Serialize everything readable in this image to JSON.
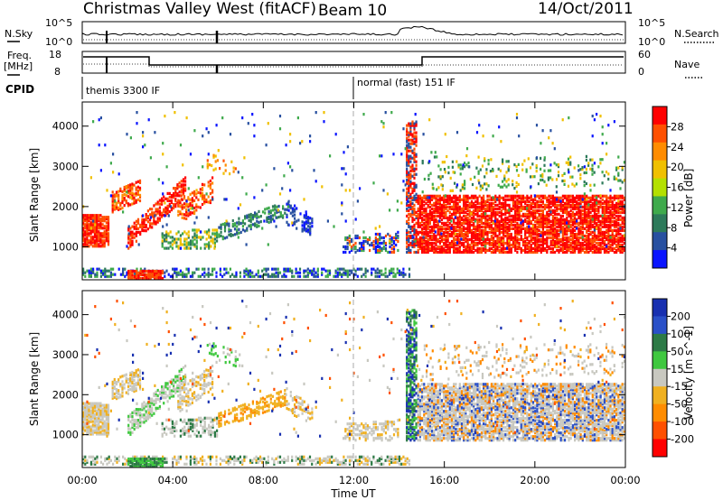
{
  "header": {
    "title": "Christmas Valley West (fitACF)",
    "beam": "Beam 10",
    "date": "14/Oct/2011"
  },
  "top_panels": {
    "nsky_label": "N.Sky",
    "nsky_ticks": [
      "10^5",
      "10^0"
    ],
    "nsearch_label": "N.Search",
    "nsearch_ticks": [
      "10^5",
      "10^0"
    ],
    "freq_label_1": "Freq.",
    "freq_label_2": "[MHz]",
    "freq_ticks": [
      "18",
      "8"
    ],
    "nave_label": "Nave",
    "nave_ticks": [
      "60",
      "0"
    ],
    "cpid_label": "CPID",
    "cpid_1": "themis 3300 IF",
    "cpid_2": "normal (fast) 151 IF"
  },
  "chart_data": [
    {
      "type": "heatmap",
      "title": "Power",
      "xlabel": "Time UT",
      "ylabel": "Slant Range [km]",
      "xlim": [
        0,
        24
      ],
      "ylim": [
        180,
        4600
      ],
      "x_ticks": [
        "00:00",
        "04:00",
        "08:00",
        "12:00",
        "16:00",
        "20:00",
        "00:00"
      ],
      "y_ticks": [
        "1000",
        "2000",
        "3000",
        "4000"
      ],
      "y_tick_values": [
        1000,
        2000,
        3000,
        4000
      ],
      "colorbar_label": "Power [dB]",
      "colorbar_ticks": [
        "28",
        "24",
        "20",
        "16",
        "12",
        "8",
        "4"
      ],
      "colorbar_colors": [
        "#ff0000",
        "#ff5000",
        "#ff8c00",
        "#f0c000",
        "#b4e000",
        "#3faa4c",
        "#2d7a5a",
        "#2850a0",
        "#0a14ff"
      ]
    },
    {
      "type": "heatmap",
      "title": "Velocity",
      "xlabel": "Time UT",
      "ylabel": "Slant Range [km]",
      "xlim": [
        0,
        24
      ],
      "ylim": [
        180,
        4600
      ],
      "x_ticks": [
        "00:00",
        "04:00",
        "08:00",
        "12:00",
        "16:00",
        "20:00",
        "00:00"
      ],
      "y_ticks": [
        "1000",
        "2000",
        "3000",
        "4000"
      ],
      "y_tick_values": [
        1000,
        2000,
        3000,
        4000
      ],
      "colorbar_label": "Velocity [m s^-1]",
      "colorbar_ticks": [
        "200",
        "100",
        "50",
        "15",
        "-15",
        "-50",
        "-100",
        "-200"
      ],
      "colorbar_colors": [
        "#1830b0",
        "#2a50c8",
        "#2d7a46",
        "#3fc83f",
        "#c8c8c0",
        "#f0b020",
        "#ff8c00",
        "#ff5000",
        "#ff0000"
      ]
    }
  ]
}
